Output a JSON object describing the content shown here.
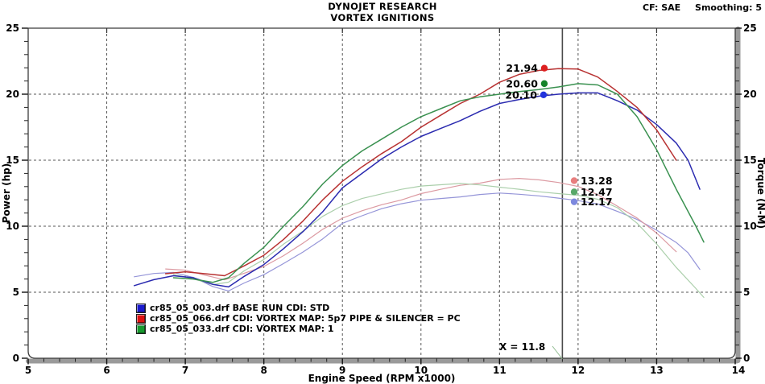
{
  "header": {
    "title_line1": "DYNOJET RESEARCH",
    "title_line2": "VORTEX IGNITIONS",
    "correction_factor": "CF: SAE",
    "smoothing": "Smoothing: 5"
  },
  "legend": {
    "items": [
      {
        "color": "#1a1acc",
        "label": "cr85_05_003.drf BASE RUN CDI: STD"
      },
      {
        "color": "#dd1111",
        "label": "cr85_05_066.drf CDI: VORTEX MAP: 5p7 PIPE & SILENCER = PC"
      },
      {
        "color": "#18992e",
        "label": "cr85_05_033.drf CDI: VORTEX MAP: 1"
      }
    ]
  },
  "chart_data": {
    "type": "line",
    "title": "DYNOJET RESEARCH - VORTEX IGNITIONS",
    "xlabel": "Engine Speed (RPM x1000)",
    "ylabel_left": "Power (hp)",
    "ylabel_right": "Torque (N-M)",
    "xlim": [
      5,
      14
    ],
    "ylim_left": [
      0,
      25
    ],
    "ylim_right": [
      0,
      25
    ],
    "x_major_ticks": [
      5,
      6,
      7,
      8,
      9,
      10,
      11,
      12,
      13,
      14
    ],
    "x_minor_step": 0.2,
    "y_major_ticks": [
      0,
      5,
      10,
      15,
      20,
      25
    ],
    "y_minor_step": 1,
    "grid": {
      "style": "dashed",
      "x_lines": [
        6,
        7,
        8,
        9,
        10,
        11,
        12,
        13
      ],
      "y_lines": [
        5,
        10,
        15,
        20
      ]
    },
    "cursor": {
      "x": 11.8,
      "label": "X = 11.8",
      "color": "#4a4a4a",
      "callout_color": "#8fbb8f"
    },
    "series": [
      {
        "id": "torque-base",
        "name": "cr85_05_003.drf BASE RUN CDI: STD",
        "quantity": "Torque (N-M)",
        "color": "#9595d8",
        "width": 1.2,
        "x": [
          6.35,
          6.6,
          6.85,
          7.1,
          7.35,
          7.55,
          7.75,
          8,
          8.25,
          8.5,
          8.75,
          9,
          9.25,
          9.5,
          9.75,
          10,
          10.25,
          10.5,
          10.75,
          11,
          11.25,
          11.5,
          11.75,
          12,
          12.25,
          12.5,
          12.75,
          13,
          13.25,
          13.4,
          13.55
        ],
        "y": [
          6.17,
          6.42,
          6.5,
          6.12,
          5.43,
          5.1,
          5.7,
          6.33,
          7.17,
          8.05,
          9.04,
          10.22,
          10.79,
          11.33,
          11.7,
          11.97,
          12.1,
          12.22,
          12.4,
          12.51,
          12.42,
          12.3,
          12.13,
          11.94,
          11.69,
          11.12,
          10.51,
          9.7,
          8.77,
          7.98,
          6.73
        ]
      },
      {
        "id": "torque-map5p7",
        "name": "cr85_05_066.drf CDI: VORTEX MAP: 5p7 PIPE & SILENCER = PC",
        "quantity": "Torque (N-M)",
        "color": "#dc9aa2",
        "width": 1.2,
        "x": [
          6.75,
          7,
          7.25,
          7.5,
          7.75,
          8,
          8.25,
          8.5,
          8.75,
          9,
          9.25,
          9.5,
          9.75,
          10,
          10.25,
          10.5,
          10.75,
          11,
          11.25,
          11.5,
          11.75,
          12,
          12.25,
          12.5,
          12.75,
          13,
          13.25
        ],
        "y": [
          6.76,
          6.67,
          6.29,
          5.94,
          6.44,
          6.95,
          7.77,
          8.72,
          9.77,
          10.61,
          11.17,
          11.63,
          11.99,
          12.47,
          12.79,
          13.1,
          13.26,
          13.54,
          13.62,
          13.51,
          13.31,
          13.01,
          12.39,
          11.52,
          10.62,
          9.48,
          8.07
        ]
      },
      {
        "id": "torque-map1",
        "name": "cr85_05_033.drf CDI: VORTEX MAP: 1",
        "quantity": "Torque (N-M)",
        "color": "#abcfab",
        "width": 1.2,
        "x": [
          6.85,
          7.1,
          7.35,
          7.55,
          7.75,
          8,
          8.25,
          8.5,
          8.75,
          9,
          9.25,
          9.5,
          9.75,
          10,
          10.25,
          10.5,
          10.75,
          11,
          11.25,
          11.5,
          11.75,
          12,
          12.25,
          12.5,
          12.75,
          13,
          13.25,
          13.5,
          13.6
        ],
        "y": [
          6.35,
          6.02,
          5.58,
          5.76,
          6.62,
          7.48,
          8.64,
          9.64,
          10.75,
          11.56,
          12.1,
          12.45,
          12.79,
          13.04,
          13.14,
          13.24,
          13.13,
          12.96,
          12.8,
          12.61,
          12.47,
          12.35,
          12.04,
          11.4,
          10.23,
          8.66,
          6.88,
          5.28,
          4.61
        ]
      },
      {
        "id": "power-base",
        "name": "cr85_05_003.drf BASE RUN CDI: STD",
        "quantity": "Power (hp)",
        "color": "#2b2bb0",
        "width": 1.5,
        "x": [
          6.35,
          6.6,
          6.85,
          7.1,
          7.35,
          7.55,
          7.75,
          8,
          8.25,
          8.5,
          8.75,
          9,
          9.25,
          9.5,
          9.75,
          10,
          10.25,
          10.5,
          10.75,
          11,
          11.25,
          11.5,
          11.75,
          12,
          12.25,
          12.5,
          12.75,
          13,
          13.25,
          13.4,
          13.55
        ],
        "y": [
          5.5,
          5.95,
          6.25,
          6.1,
          5.6,
          5.4,
          6.2,
          7.1,
          8.3,
          9.6,
          11.1,
          12.9,
          14,
          15.1,
          16,
          16.8,
          17.4,
          18,
          18.7,
          19.3,
          19.6,
          19.85,
          20,
          20.1,
          20.1,
          19.5,
          18.8,
          17.7,
          16.3,
          15,
          12.8
        ]
      },
      {
        "id": "power-map5p7",
        "name": "cr85_05_066.drf CDI: VORTEX MAP: 5p7 PIPE & SILENCER = PC",
        "quantity": "Power (hp)",
        "color": "#b83232",
        "width": 1.5,
        "x": [
          6.75,
          7,
          7.25,
          7.5,
          7.75,
          8,
          8.25,
          8.5,
          8.75,
          9,
          9.25,
          9.5,
          9.75,
          10,
          10.25,
          10.5,
          10.75,
          11,
          11.25,
          11.5,
          11.75,
          12,
          12.25,
          12.5,
          12.75,
          13,
          13.25
        ],
        "y": [
          6.4,
          6.55,
          6.4,
          6.25,
          7,
          7.8,
          9,
          10.4,
          12,
          13.4,
          14.5,
          15.5,
          16.4,
          17.5,
          18.4,
          19.3,
          20,
          20.9,
          21.5,
          21.8,
          21.94,
          21.9,
          21.3,
          20.2,
          19,
          17.3,
          15
        ]
      },
      {
        "id": "power-map1",
        "name": "cr85_05_033.drf CDI: VORTEX MAP: 1",
        "quantity": "Power (hp)",
        "color": "#3a9150",
        "width": 1.5,
        "x": [
          6.85,
          7.1,
          7.35,
          7.55,
          7.75,
          8,
          8.25,
          8.5,
          8.75,
          9,
          9.25,
          9.5,
          9.75,
          10,
          10.25,
          10.5,
          10.75,
          11,
          11.25,
          11.5,
          11.75,
          12,
          12.25,
          12.5,
          12.75,
          13,
          13.25,
          13.5,
          13.6
        ],
        "y": [
          6.1,
          6,
          5.75,
          6.1,
          7.2,
          8.4,
          10,
          11.5,
          13.2,
          14.6,
          15.7,
          16.6,
          17.5,
          18.3,
          18.9,
          19.5,
          19.8,
          20,
          20.2,
          20.35,
          20.55,
          20.8,
          20.7,
          20,
          18.3,
          15.8,
          12.8,
          10,
          8.8
        ]
      }
    ],
    "markers": [
      {
        "label": "21.94",
        "x": 11.57,
        "y": 21.97,
        "color": "#dd2020",
        "label_side": "left",
        "series": "power-map5p7"
      },
      {
        "label": "20.60",
        "x": 11.57,
        "y": 20.8,
        "color": "#15832a",
        "label_side": "left",
        "series": "power-map1"
      },
      {
        "label": "20.10",
        "x": 11.56,
        "y": 19.95,
        "color": "#2233dd",
        "label_side": "left",
        "series": "power-base"
      },
      {
        "label": "13.28",
        "x": 11.95,
        "y": 13.45,
        "color": "#e87e7e",
        "label_side": "right",
        "series": "torque-map5p7"
      },
      {
        "label": "12.47",
        "x": 11.95,
        "y": 12.6,
        "color": "#58a868",
        "label_side": "right",
        "series": "torque-map1"
      },
      {
        "label": "12.17",
        "x": 11.95,
        "y": 11.85,
        "color": "#7d88de",
        "label_side": "right",
        "series": "torque-base"
      }
    ]
  }
}
